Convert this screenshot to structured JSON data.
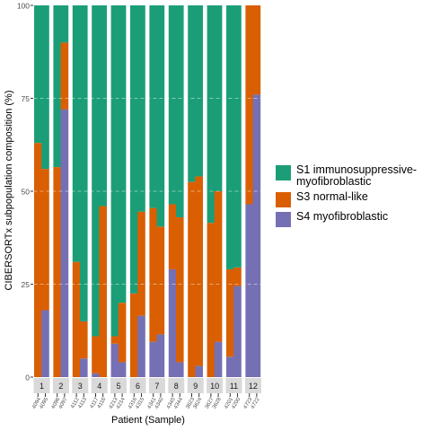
{
  "chart_data": {
    "type": "bar",
    "stacked": true,
    "faceted": true,
    "xlabel": "Patient (Sample)",
    "ylabel": "CIBERSORTx subpopulation composition (%)",
    "ylim": [
      0,
      100
    ],
    "yticks": [
      0,
      25,
      50,
      75,
      100
    ],
    "grid": true,
    "legend_position": "right",
    "series": [
      {
        "name": "S1 immunosuppressive-myofibroblastic",
        "color": "#1b9e77"
      },
      {
        "name": "S3 normal-like",
        "color": "#d95f02"
      },
      {
        "name": "S4 myofibroblastic",
        "color": "#7570b3"
      }
    ],
    "panels": [
      {
        "patient": "1",
        "samples": [
          {
            "label": "4094",
            "values": [
              37,
              63,
              0
            ]
          },
          {
            "label": "4095",
            "values": [
              44,
              38,
              18
            ]
          }
        ]
      },
      {
        "patient": "2",
        "samples": [
          {
            "label": "4096",
            "values": [
              43.5,
              56.5,
              0
            ]
          },
          {
            "label": "4097",
            "values": [
              10,
              18,
              72
            ]
          }
        ]
      },
      {
        "patient": "3",
        "samples": [
          {
            "label": "4112",
            "values": [
              69,
              31,
              0
            ]
          },
          {
            "label": "4113",
            "values": [
              85,
              10,
              5
            ]
          }
        ]
      },
      {
        "patient": "4",
        "samples": [
          {
            "label": "4117",
            "values": [
              89,
              10,
              1
            ]
          },
          {
            "label": "4116",
            "values": [
              54,
              46,
              0
            ]
          }
        ]
      },
      {
        "patient": "5",
        "samples": [
          {
            "label": "4213",
            "values": [
              89,
              2,
              9
            ]
          },
          {
            "label": "4214",
            "values": [
              80,
              16,
              4
            ]
          }
        ]
      },
      {
        "patient": "6",
        "samples": [
          {
            "label": "4316",
            "values": [
              77.5,
              22.5,
              0
            ]
          },
          {
            "label": "4315",
            "values": [
              55.5,
              28,
              16.5
            ]
          }
        ]
      },
      {
        "patient": "7",
        "samples": [
          {
            "label": "4341",
            "values": [
              54.5,
              36,
              9.5
            ]
          },
          {
            "label": "4340",
            "values": [
              59.5,
              29,
              11.5
            ]
          }
        ]
      },
      {
        "patient": "8",
        "samples": [
          {
            "label": "4345",
            "values": [
              53.5,
              17.5,
              29
            ]
          },
          {
            "label": "4344",
            "values": [
              57,
              39,
              4
            ]
          }
        ]
      },
      {
        "patient": "9",
        "samples": [
          {
            "label": "3623",
            "values": [
              47.5,
              52.5,
              0
            ]
          },
          {
            "label": "3624",
            "values": [
              46,
              51,
              3
            ]
          }
        ]
      },
      {
        "patient": "10",
        "samples": [
          {
            "label": "3627",
            "values": [
              58.5,
              41.5,
              0
            ]
          },
          {
            "label": "3628",
            "values": [
              50,
              40.5,
              9.5
            ]
          }
        ]
      },
      {
        "patient": "11",
        "samples": [
          {
            "label": "4201",
            "values": [
              71,
              23.5,
              5.5
            ]
          },
          {
            "label": "4200",
            "values": [
              70.5,
              5,
              24.5
            ]
          }
        ]
      },
      {
        "patient": "12",
        "samples": [
          {
            "label": "4723",
            "values": [
              0,
              53.5,
              46.5
            ]
          },
          {
            "label": "4722",
            "values": [
              0,
              24,
              76
            ]
          }
        ]
      }
    ]
  }
}
